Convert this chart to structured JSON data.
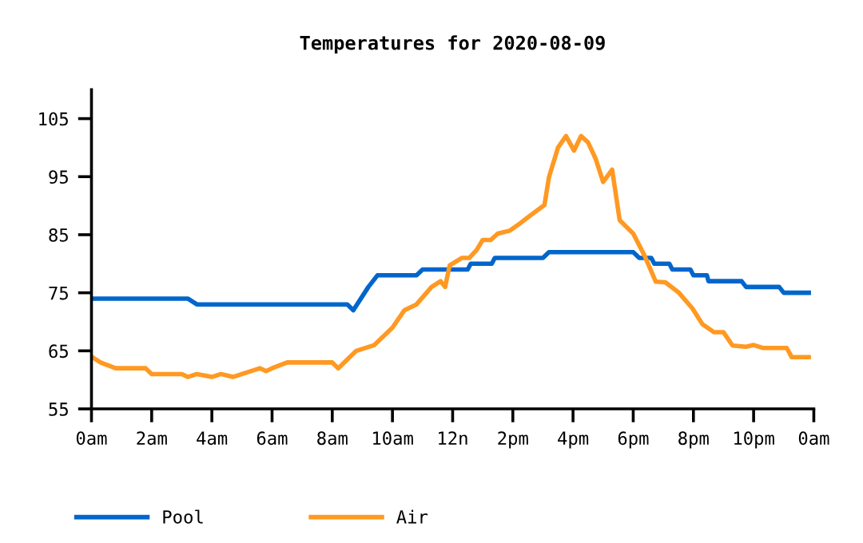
{
  "chart_data": {
    "type": "line",
    "title": "Temperatures for 2020-08-09",
    "xlim": [
      "2020-08-09T00:00",
      "2020-08-10T00:00"
    ],
    "ylim": [
      55,
      110
    ],
    "xticks": [
      {
        "value": "2020-08-09T00:00",
        "label": "0am"
      },
      {
        "value": "2020-08-09T02:00",
        "label": "2am"
      },
      {
        "value": "2020-08-09T04:00",
        "label": "4am"
      },
      {
        "value": "2020-08-09T06:00",
        "label": "6am"
      },
      {
        "value": "2020-08-09T08:00",
        "label": "8am"
      },
      {
        "value": "2020-08-09T10:00",
        "label": "10am"
      },
      {
        "value": "2020-08-09T12:00",
        "label": "12n"
      },
      {
        "value": "2020-08-09T14:00",
        "label": "2pm"
      },
      {
        "value": "2020-08-09T16:00",
        "label": "4pm"
      },
      {
        "value": "2020-08-09T18:00",
        "label": "6pm"
      },
      {
        "value": "2020-08-09T20:00",
        "label": "8pm"
      },
      {
        "value": "2020-08-09T22:00",
        "label": "10pm"
      },
      {
        "value": "2020-08-10T00:00",
        "label": "0am"
      }
    ],
    "yticks": [
      55,
      65,
      75,
      85,
      95,
      105
    ],
    "grid": false,
    "legend": "bottom",
    "marker": "none",
    "line_style": "solid",
    "series": [
      {
        "name": "Pool",
        "color": "#0066cc",
        "x": [
          "2020-08-09T00:00",
          "2020-08-09T03:12",
          "2020-08-09T03:30",
          "2020-08-09T08:30",
          "2020-08-09T08:42",
          "2020-08-09T09:12",
          "2020-08-09T09:30",
          "2020-08-09T10:48",
          "2020-08-09T11:00",
          "2020-08-09T12:30",
          "2020-08-09T12:36",
          "2020-08-09T13:18",
          "2020-08-09T13:24",
          "2020-08-09T15:00",
          "2020-08-09T15:12",
          "2020-08-09T18:00",
          "2020-08-09T18:12",
          "2020-08-09T18:36",
          "2020-08-09T18:42",
          "2020-08-09T19:12",
          "2020-08-09T19:18",
          "2020-08-09T19:54",
          "2020-08-09T20:00",
          "2020-08-09T20:27",
          "2020-08-09T20:30",
          "2020-08-09T21:36",
          "2020-08-09T21:45",
          "2020-08-09T22:51",
          "2020-08-09T23:00",
          "2020-08-09T23:50"
        ],
        "values": [
          74,
          74,
          73,
          73,
          72,
          76,
          78,
          78,
          79,
          79,
          80,
          80,
          81,
          81,
          82,
          82,
          81,
          81,
          80,
          80,
          79,
          79,
          78,
          78,
          77,
          77,
          76,
          76,
          75,
          75
        ]
      },
      {
        "name": "Air",
        "color": "#ff9922",
        "x": [
          "2020-08-09T00:00",
          "2020-08-09T00:18",
          "2020-08-09T00:48",
          "2020-08-09T01:48",
          "2020-08-09T02:00",
          "2020-08-09T03:00",
          "2020-08-09T03:12",
          "2020-08-09T03:30",
          "2020-08-09T04:00",
          "2020-08-09T04:18",
          "2020-08-09T04:42",
          "2020-08-09T05:00",
          "2020-08-09T05:36",
          "2020-08-09T05:48",
          "2020-08-09T06:00",
          "2020-08-09T06:30",
          "2020-08-09T08:00",
          "2020-08-09T08:12",
          "2020-08-09T08:36",
          "2020-08-09T08:48",
          "2020-08-09T09:24",
          "2020-08-09T09:48",
          "2020-08-09T10:00",
          "2020-08-09T10:24",
          "2020-08-09T10:48",
          "2020-08-09T11:18",
          "2020-08-09T11:36",
          "2020-08-09T11:45",
          "2020-08-09T11:54",
          "2020-08-09T12:18",
          "2020-08-09T12:33",
          "2020-08-09T12:48",
          "2020-08-09T13:00",
          "2020-08-09T13:16",
          "2020-08-09T13:30",
          "2020-08-09T13:54",
          "2020-08-09T14:15",
          "2020-08-09T14:36",
          "2020-08-09T15:03",
          "2020-08-09T15:12",
          "2020-08-09T15:30",
          "2020-08-09T15:46",
          "2020-08-09T16:02",
          "2020-08-09T16:16",
          "2020-08-09T16:30",
          "2020-08-09T16:45",
          "2020-08-09T17:00",
          "2020-08-09T17:18",
          "2020-08-09T17:33",
          "2020-08-09T18:00",
          "2020-08-09T18:22",
          "2020-08-09T18:45",
          "2020-08-09T19:04",
          "2020-08-09T19:30",
          "2020-08-09T19:58",
          "2020-08-09T20:18",
          "2020-08-09T20:41",
          "2020-08-09T21:00",
          "2020-08-09T21:18",
          "2020-08-09T21:45",
          "2020-08-09T22:00",
          "2020-08-09T22:18",
          "2020-08-09T23:06",
          "2020-08-09T23:16",
          "2020-08-09T23:50"
        ],
        "values": [
          64,
          63,
          62,
          62,
          61,
          61,
          60.5,
          61,
          60.5,
          61,
          60.5,
          61,
          62,
          61.5,
          62,
          63,
          63,
          62,
          64,
          65,
          66,
          68,
          69,
          72,
          73,
          76,
          77,
          76,
          79.7,
          81,
          81,
          82.4,
          84.1,
          84.1,
          85.2,
          85.7,
          87,
          88.4,
          90.1,
          94.9,
          100,
          102,
          99.5,
          102,
          100.9,
          98.1,
          94.1,
          96.2,
          87.5,
          85.2,
          81.5,
          76.9,
          76.8,
          75.1,
          72.3,
          69.6,
          68.2,
          68.2,
          65.9,
          65.7,
          66,
          65.5,
          65.5,
          63.9,
          63.9
        ]
      }
    ]
  }
}
